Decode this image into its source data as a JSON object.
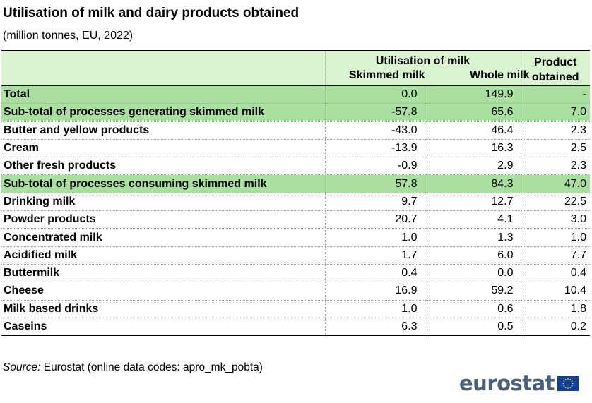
{
  "title": "Utilisation of milk and dairy products obtained",
  "subtitle": "(million tonnes, EU, 2022)",
  "header": {
    "group": "Utilisation of  milk",
    "col1": "Skimmed milk",
    "col2": "Whole milk",
    "col3_line1": "Product",
    "col3_line2": "obtained"
  },
  "rows": [
    {
      "label": "Total",
      "skimmed": "0.0",
      "whole": "149.9",
      "product": "-",
      "highlight": true
    },
    {
      "label": "Sub-total of processes generating skimmed milk",
      "skimmed": "-57.8",
      "whole": "65.6",
      "product": "7.0",
      "highlight": true
    },
    {
      "label": "Butter and yellow products",
      "skimmed": "-43.0",
      "whole": "46.4",
      "product": "2.3",
      "highlight": false
    },
    {
      "label": "Cream",
      "skimmed": "-13.9",
      "whole": "16.3",
      "product": "2.5",
      "highlight": false
    },
    {
      "label": "Other fresh products",
      "skimmed": "-0.9",
      "whole": "2.9",
      "product": "2.3",
      "highlight": false
    },
    {
      "label": "Sub-total of processes consuming skimmed milk",
      "skimmed": "57.8",
      "whole": "84.3",
      "product": "47.0",
      "highlight": true
    },
    {
      "label": "Drinking milk",
      "skimmed": "9.7",
      "whole": "12.7",
      "product": "22.5",
      "highlight": false
    },
    {
      "label": "Powder products",
      "skimmed": "20.7",
      "whole": "4.1",
      "product": "3.0",
      "highlight": false
    },
    {
      "label": "Concentrated milk",
      "skimmed": "1.0",
      "whole": "1.3",
      "product": "1.0",
      "highlight": false
    },
    {
      "label": "Acidified milk",
      "skimmed": "1.7",
      "whole": "6.0",
      "product": "7.7",
      "highlight": false
    },
    {
      "label": "Buttermilk",
      "skimmed": "0.4",
      "whole": "0.0",
      "product": "0.4",
      "highlight": false
    },
    {
      "label": "Cheese",
      "skimmed": "16.9",
      "whole": "59.2",
      "product": "10.4",
      "highlight": false
    },
    {
      "label": "Milk based drinks",
      "skimmed": "1.0",
      "whole": "0.6",
      "product": "1.8",
      "highlight": false
    },
    {
      "label": "Caseins",
      "skimmed": "6.3",
      "whole": "0.5",
      "product": "0.2",
      "highlight": false
    }
  ],
  "source": {
    "prefix": "Source:",
    "text": " Eurostat (online data codes: apro_mk_pobta)"
  },
  "logo": {
    "text": "eurostat",
    "flag_icon": "eu-flag-icon",
    "flag_color": "#0e3e9e",
    "star_color": "#ffdd00"
  },
  "colors": {
    "header_bg": "#d9f2d0",
    "highlight_bg": "#a9e0a0",
    "logo_text": "#4a5f7a"
  }
}
